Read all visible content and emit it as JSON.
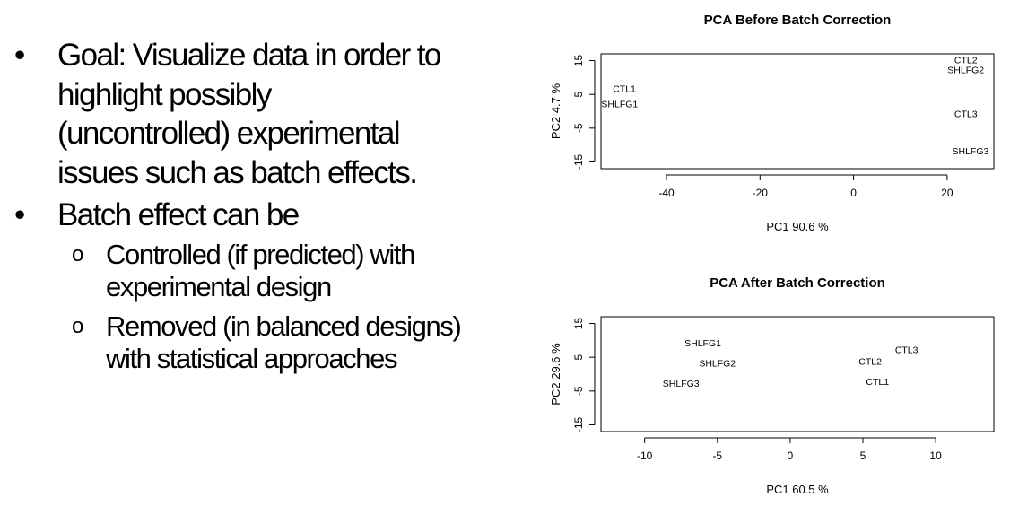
{
  "bullets": [
    {
      "text": "Goal: Visualize data in order to highlight possibly (uncontrolled) experimental issues such as batch effects.",
      "lines": [
        "Goal: Visualize data in order to",
        "highlight possibly",
        "(uncontrolled) experimental",
        "issues such as batch effects."
      ]
    },
    {
      "text": "Batch effect can be",
      "lines": [
        "Batch effect can be"
      ],
      "subitems": [
        {
          "text": "Controlled (if predicted)  with experimental design",
          "lines": [
            "Controlled (if predicted)  with",
            "experimental design"
          ]
        },
        {
          "text": "Removed (in balanced designs) with statistical approaches",
          "lines": [
            "Removed (in balanced designs)",
            "with statistical approaches"
          ]
        }
      ]
    }
  ],
  "bullet_symbol": "•",
  "sub_bullet_symbol": "o",
  "chart_data": [
    {
      "type": "scatter",
      "title": "PCA Before Batch Correction",
      "xlabel": "PC1 90.6 %",
      "ylabel": "PC2 4.7 %",
      "xlim": [
        -54,
        30
      ],
      "ylim": [
        -17,
        17
      ],
      "xticks": [
        -40,
        -20,
        0,
        20
      ],
      "yticks": [
        -15,
        -5,
        5,
        15
      ],
      "points": [
        {
          "label": "CTL1",
          "x": -49,
          "y": 6.5
        },
        {
          "label": "SHLFG1",
          "x": -50,
          "y": 2
        },
        {
          "label": "CTL2",
          "x": 24,
          "y": 15
        },
        {
          "label": "SHLFG2",
          "x": 24,
          "y": 12
        },
        {
          "label": "CTL3",
          "x": 24,
          "y": -1
        },
        {
          "label": "SHLFG3",
          "x": 25,
          "y": -12
        }
      ]
    },
    {
      "type": "scatter",
      "title": "PCA After Batch Correction",
      "xlabel": "PC1 60.5 %",
      "ylabel": "PC2 29.6 %",
      "xlim": [
        -13,
        14
      ],
      "ylim": [
        -17,
        17
      ],
      "xticks": [
        -10,
        -5,
        0,
        5,
        10
      ],
      "yticks": [
        -15,
        -5,
        5,
        15
      ],
      "points": [
        {
          "label": "SHLFG1",
          "x": -6,
          "y": 9
        },
        {
          "label": "SHLFG2",
          "x": -5,
          "y": 3
        },
        {
          "label": "SHLFG3",
          "x": -7.5,
          "y": -3
        },
        {
          "label": "CTL3",
          "x": 8,
          "y": 7
        },
        {
          "label": "CTL2",
          "x": 5.5,
          "y": 3.5
        },
        {
          "label": "CTL1",
          "x": 6,
          "y": -2.5
        }
      ]
    }
  ]
}
